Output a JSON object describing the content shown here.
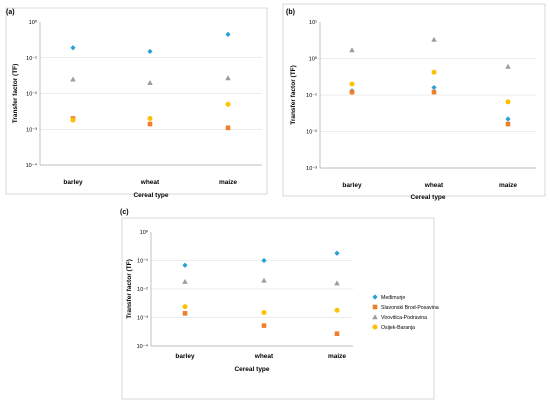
{
  "colors": {
    "Medimurje": "#2A9FD8",
    "Slavonski Brod-Posavina": "#F07F2A",
    "Virovitica-Podravina": "#9E9E9E",
    "Osijek-Baranja": "#FFC000",
    "grid": "#D9D9D9",
    "frame": "#BFBFBF"
  },
  "legend": {
    "placement": "right of panel (c)",
    "items": [
      {
        "label": "Međimurje",
        "marker": "diamond",
        "color": "#2A9FD8"
      },
      {
        "label": "Slavonski Brod-Posavina",
        "marker": "square",
        "color": "#F07F2A"
      },
      {
        "label": "Virovitica-Podravina",
        "marker": "triangle",
        "color": "#9E9E9E"
      },
      {
        "label": "Osijek-Baranja",
        "marker": "circle",
        "color": "#FFC000"
      }
    ]
  },
  "chart_data": [
    {
      "panel": "(a)",
      "type": "scatter",
      "scale": "log",
      "grid": true,
      "xlabel": "Cereal type",
      "ylabel": "Transfer factor (TF)",
      "categories": [
        "barley",
        "wheat",
        "maize"
      ],
      "ylim_exp": [
        -4,
        0
      ],
      "ytick_labels": [
        "10⁰",
        "10⁻¹",
        "10⁻²",
        "10⁻³",
        "10⁻⁴"
      ],
      "series": [
        {
          "name": "Međimurje",
          "marker": "diamond",
          "values": [
            0.19,
            0.15,
            0.45
          ]
        },
        {
          "name": "Slavonski Brod-Posavina",
          "marker": "square",
          "values": [
            0.002,
            0.0014,
            0.0011
          ]
        },
        {
          "name": "Virovitica-Podravina",
          "marker": "triangle",
          "values": [
            0.025,
            0.02,
            0.027
          ]
        },
        {
          "name": "Osijek-Baranja",
          "marker": "circle",
          "values": [
            0.0018,
            0.002,
            0.005
          ]
        }
      ]
    },
    {
      "panel": "(b)",
      "type": "scatter",
      "scale": "log",
      "grid": true,
      "xlabel": "Cereal type",
      "ylabel": "Transfer factor (TF)",
      "categories": [
        "barley",
        "wheat",
        "maize"
      ],
      "ylim_exp": [
        -3,
        1
      ],
      "ytick_labels": [
        "10¹",
        "10⁰",
        "10⁻¹",
        "10⁻²",
        "10⁻³"
      ],
      "series": [
        {
          "name": "Međimurje",
          "marker": "diamond",
          "values": [
            0.13,
            0.16,
            0.022
          ]
        },
        {
          "name": "Slavonski Brod-Posavina",
          "marker": "square",
          "values": [
            0.12,
            0.12,
            0.016
          ]
        },
        {
          "name": "Virovitica-Podravina",
          "marker": "triangle",
          "values": [
            1.7,
            3.3,
            0.6
          ]
        },
        {
          "name": "Osijek-Baranja",
          "marker": "circle",
          "values": [
            0.2,
            0.42,
            0.065
          ]
        }
      ]
    },
    {
      "panel": "(c)",
      "type": "scatter",
      "scale": "log",
      "grid": true,
      "xlabel": "Cereal type",
      "ylabel": "Transfer factor (TF)",
      "categories": [
        "barley",
        "wheat",
        "maize"
      ],
      "ylim_exp": [
        -4,
        0
      ],
      "ytick_labels": [
        "10⁰",
        "10⁻¹",
        "10⁻²",
        "10⁻³",
        "10⁻⁴"
      ],
      "series": [
        {
          "name": "Međimurje",
          "marker": "diamond",
          "values": [
            0.068,
            0.1,
            0.18
          ]
        },
        {
          "name": "Slavonski Brod-Posavina",
          "marker": "square",
          "values": [
            0.0014,
            0.00052,
            0.00027
          ]
        },
        {
          "name": "Virovitica-Podravina",
          "marker": "triangle",
          "values": [
            0.018,
            0.02,
            0.016
          ]
        },
        {
          "name": "Osijek-Baranja",
          "marker": "circle",
          "values": [
            0.0024,
            0.0015,
            0.0018
          ]
        }
      ]
    }
  ]
}
